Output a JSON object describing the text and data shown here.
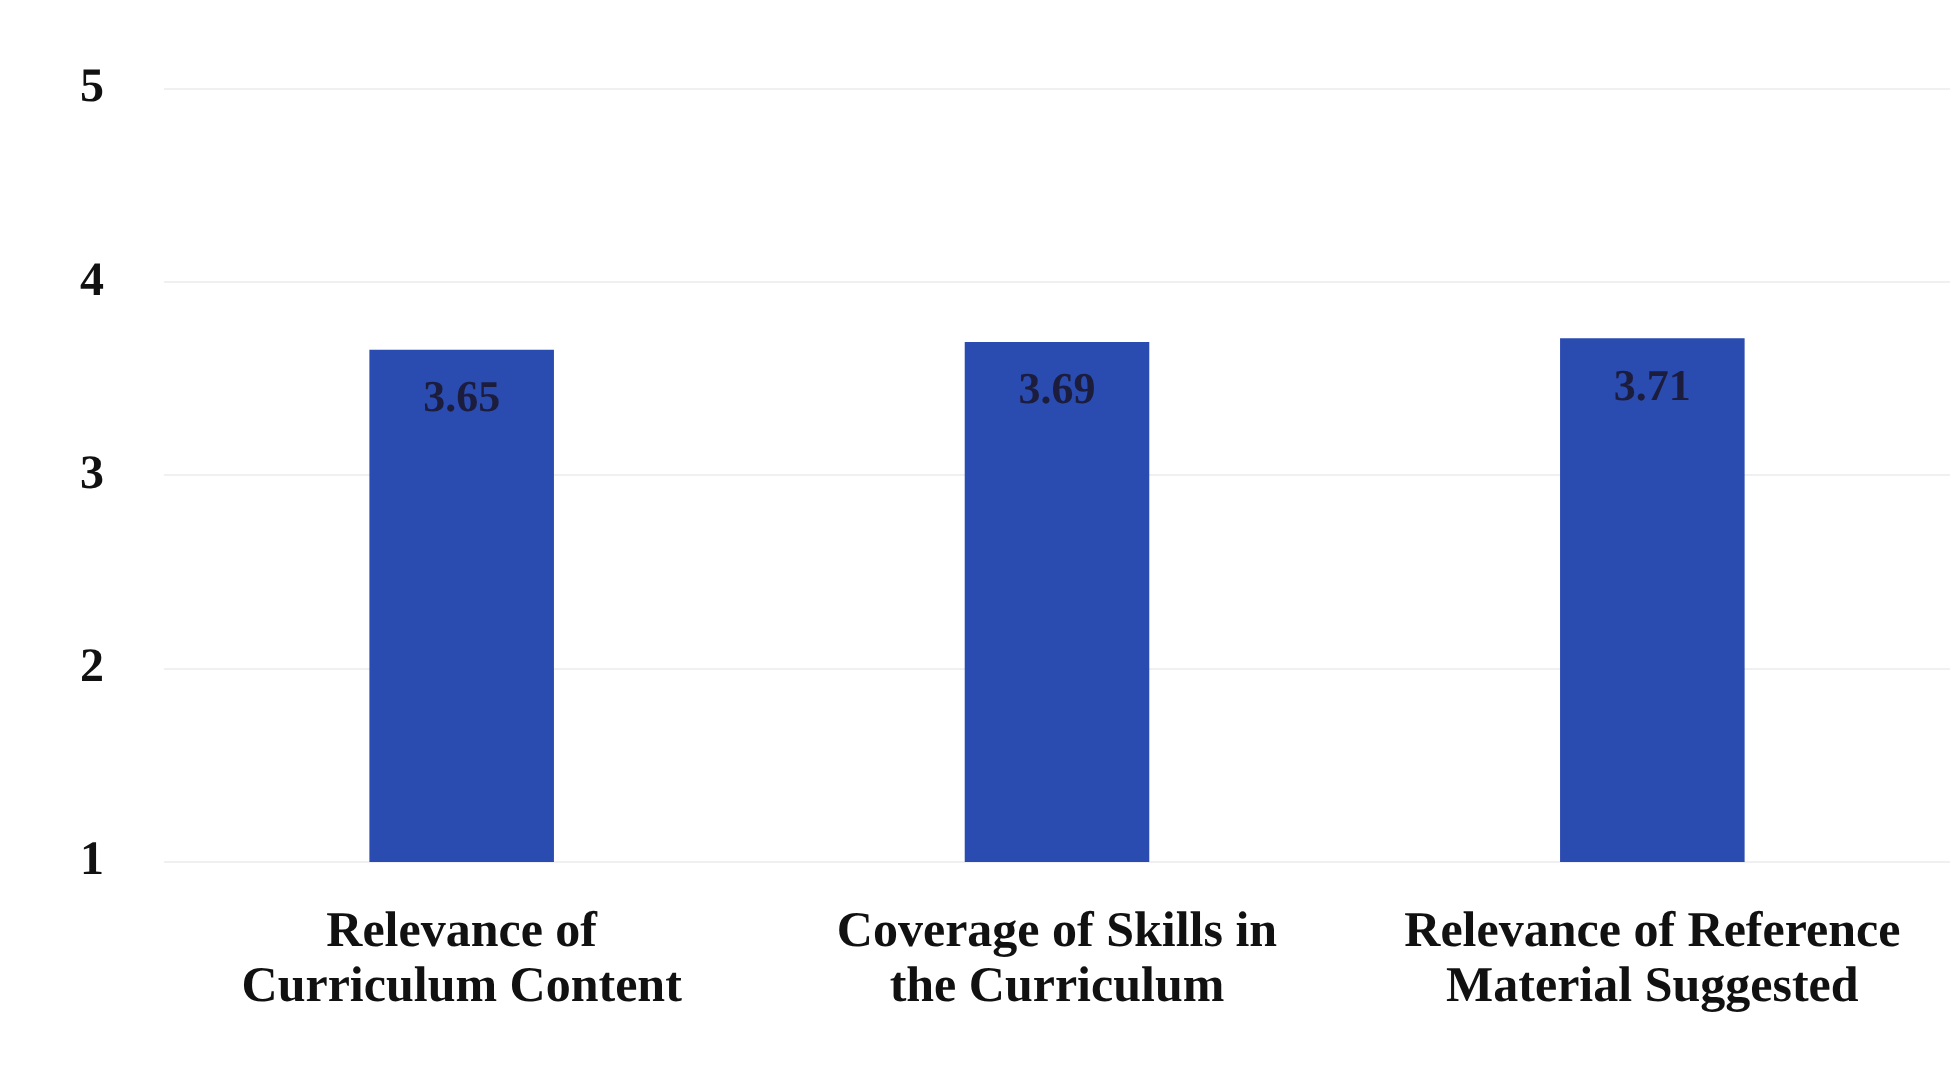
{
  "chart_data": {
    "type": "bar",
    "categories": [
      "Relevance of Curriculum Content",
      "Coverage of Skills in the Curriculum",
      "Relevance of Reference Material Suggested"
    ],
    "values": [
      3.65,
      3.69,
      3.71
    ],
    "color": "#2a4bb0",
    "ylim": [
      1,
      5
    ],
    "yticks": [
      1,
      2,
      3,
      4,
      5
    ],
    "grid": "y",
    "data_labels": true
  }
}
